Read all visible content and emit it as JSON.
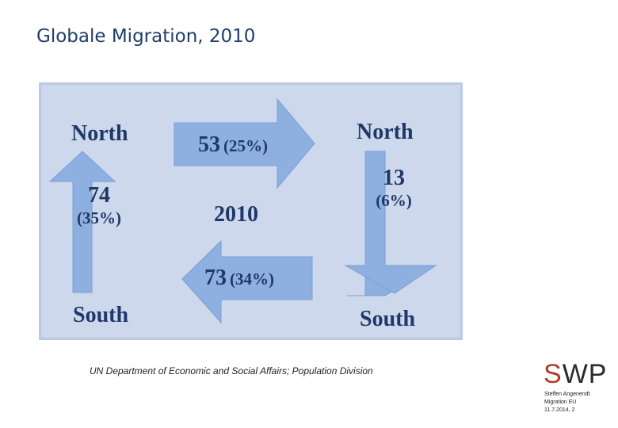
{
  "slide": {
    "title": "Globale Migration, 2010"
  },
  "diagram": {
    "north_left": "North",
    "north_right": "North",
    "south_left": "South",
    "south_right": "South",
    "center_year": "2010",
    "flow_top": {
      "value": "53",
      "pct": "(25%)"
    },
    "flow_bottom": {
      "value": "73",
      "pct": "(34%)"
    },
    "flow_left": {
      "value": "74",
      "pct": "(35%)"
    },
    "flow_right": {
      "value": "13",
      "pct": "(6%)"
    },
    "colors": {
      "arrow": "#8eb0e0",
      "background": "#cdd8ec",
      "text": "#1f3868"
    }
  },
  "source": "UN Department of Economic and Social Affairs; Population Division",
  "logo": {
    "s": "S",
    "rest": "WP"
  },
  "footer": {
    "author": "Steffen Angenendt",
    "topic": "Migration EU",
    "date_page": "11.7.2014, 2"
  }
}
